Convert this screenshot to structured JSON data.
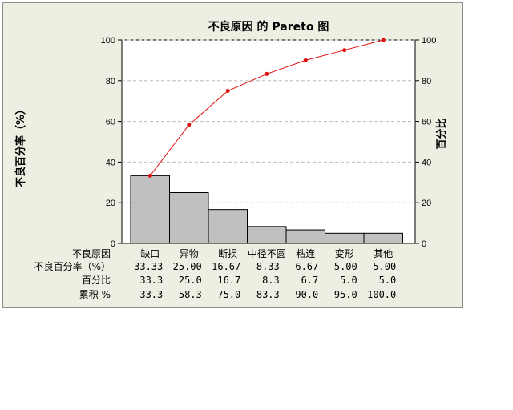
{
  "chart_data": {
    "type": "pareto",
    "title": "不良原因 的 Pareto 图",
    "ylabel_left": "不良百分率（%）",
    "ylabel_right": "百分比",
    "ylim_left": [
      0,
      100
    ],
    "ylim_right": [
      0,
      100
    ],
    "yticks_left": [
      0,
      20,
      40,
      60,
      80,
      100
    ],
    "yticks_right": [
      0,
      20,
      40,
      60,
      80,
      100
    ],
    "grid": "horizontal dashed",
    "categories": [
      "缺口",
      "异物",
      "断损",
      "中径不圆",
      "粘连",
      "变形",
      "其他"
    ],
    "series": [
      {
        "type": "bar",
        "values": [
          33.33,
          25.0,
          16.67,
          8.33,
          6.67,
          5.0,
          5.0
        ]
      },
      {
        "type": "line",
        "values": [
          33.3,
          58.3,
          75.0,
          83.3,
          90.0,
          95.0,
          100.0
        ]
      }
    ],
    "colors": {
      "bar_fill": "#c0c0c0",
      "bar_stroke": "#000000",
      "line": "#e01010",
      "marker": "#e01010",
      "grid": "#bdbdbd",
      "background": "#efeee3",
      "plot_bg": "#ffffff"
    },
    "table": {
      "row_labels": [
        "不良原因",
        "不良百分率（%）",
        "百分比",
        "累积 %"
      ],
      "rows": [
        [
          "缺口",
          "异物",
          "断损",
          "中径不圆",
          "粘连",
          "变形",
          "其他"
        ],
        [
          "33.33",
          "25.00",
          "16.67",
          "8.33",
          "6.67",
          "5.00",
          "5.00"
        ],
        [
          "33.3",
          "25.0",
          "16.7",
          "8.3",
          "6.7",
          "5.0",
          "5.0"
        ],
        [
          "33.3",
          "58.3",
          "75.0",
          "83.3",
          "90.0",
          "95.0",
          "100.0"
        ]
      ]
    }
  }
}
